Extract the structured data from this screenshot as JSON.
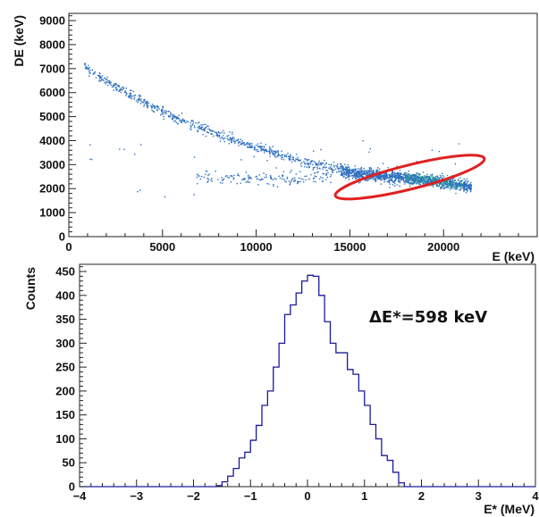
{
  "chart_data": [
    {
      "type": "scatter",
      "title": "",
      "xlabel": "E (keV)",
      "ylabel": "DE (keV)",
      "xlim": [
        0,
        25000
      ],
      "ylim": [
        0,
        9300
      ],
      "xticks": [
        0,
        5000,
        10000,
        15000,
        20000
      ],
      "yticks": [
        0,
        1000,
        2000,
        3000,
        4000,
        5000,
        6000,
        7000,
        8000,
        9000
      ],
      "tick_labels_x": [
        "0",
        "5000",
        "10000",
        "15000",
        "20000"
      ],
      "tick_labels_y": [
        "0",
        "1000",
        "2000",
        "3000",
        "4000",
        "5000",
        "6000",
        "7000",
        "8000",
        "9000"
      ],
      "point_color": "#2e6fc0",
      "dense_color": "#1fa08a",
      "series": [
        {
          "band": "upper",
          "x": [
            800,
            1500,
            2500,
            3500,
            4500,
            5500,
            6500,
            7500,
            8500,
            9500,
            10500,
            11500,
            12500,
            13500,
            14500
          ],
          "y": [
            7150,
            6700,
            6250,
            5850,
            5400,
            5050,
            4700,
            4400,
            4100,
            3850,
            3600,
            3350,
            3100,
            2950,
            2820
          ]
        },
        {
          "band": "lower",
          "x": [
            6800,
            8000,
            9000,
            10000,
            11000,
            12000,
            13000,
            14000
          ],
          "y": [
            2450,
            2450,
            2450,
            2430,
            2420,
            2400,
            2450,
            2560
          ]
        },
        {
          "band": "selected",
          "x": [
            14500,
            15500,
            16500,
            17500,
            18500,
            19500,
            20500,
            21500
          ],
          "y": [
            2750,
            2600,
            2550,
            2480,
            2400,
            2300,
            2200,
            2100
          ]
        }
      ],
      "selection": {
        "color": "#e02020",
        "center": [
          18200,
          2480
        ],
        "semi_axes": [
          4100,
          500
        ],
        "rotation_deg": -14
      }
    },
    {
      "type": "histogram",
      "title": "",
      "xlabel": "E* (MeV)",
      "ylabel": "Counts",
      "xlim": [
        -4,
        4
      ],
      "ylim": [
        0,
        465
      ],
      "xticks": [
        -4,
        -3,
        -2,
        -1,
        0,
        1,
        2,
        3,
        4
      ],
      "yticks": [
        0,
        50,
        100,
        150,
        200,
        250,
        300,
        350,
        400,
        450
      ],
      "tick_labels_x": [
        "−4",
        "−3",
        "−2",
        "−1",
        "0",
        "1",
        "2",
        "3",
        "4"
      ],
      "tick_labels_y": [
        "0",
        "50",
        "100",
        "150",
        "200",
        "250",
        "300",
        "350",
        "400",
        "450"
      ],
      "line_color": "#1a1a9e",
      "bin_width": 0.1,
      "bin_edges": [
        -1.6,
        -1.5,
        -1.4,
        -1.3,
        -1.2,
        -1.1,
        -1.0,
        -0.9,
        -0.8,
        -0.7,
        -0.6,
        -0.5,
        -0.4,
        -0.3,
        -0.2,
        -0.1,
        0.0,
        0.1,
        0.2,
        0.3,
        0.4,
        0.5,
        0.6,
        0.7,
        0.8,
        0.9,
        1.0,
        1.1,
        1.2,
        1.3,
        1.4,
        1.5,
        1.6,
        1.7
      ],
      "counts": [
        2,
        10,
        22,
        38,
        60,
        72,
        97,
        128,
        170,
        200,
        250,
        300,
        360,
        380,
        405,
        430,
        442,
        440,
        400,
        345,
        300,
        280,
        280,
        245,
        235,
        200,
        170,
        130,
        100,
        65,
        55,
        30,
        8
      ],
      "annotation": "ΔE*=598 keV"
    }
  ]
}
